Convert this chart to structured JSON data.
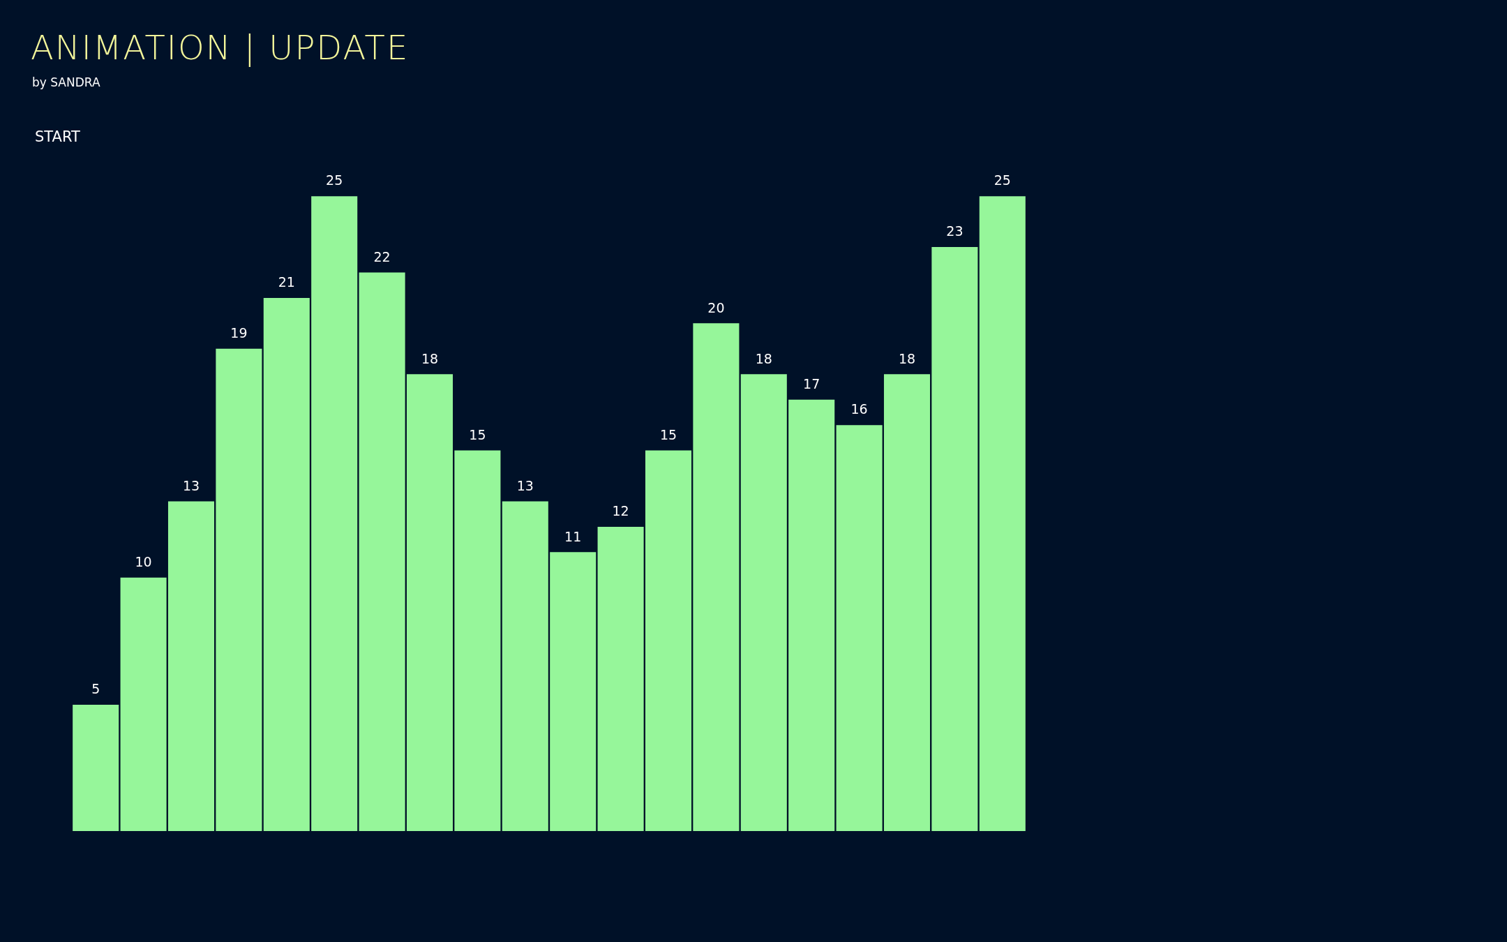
{
  "chart_data": {
    "type": "bar",
    "title": "ANIMATION | UPDATE",
    "subtitle": "by SANDRA",
    "annotations": [
      "START"
    ],
    "categories": [
      null,
      null,
      null,
      null,
      null,
      null,
      null,
      null,
      null,
      null,
      null,
      null,
      null,
      null,
      null,
      null,
      null,
      null,
      null,
      null
    ],
    "values": [
      5,
      10,
      13,
      19,
      21,
      25,
      22,
      18,
      15,
      13,
      11,
      12,
      15,
      20,
      18,
      17,
      16,
      18,
      23,
      25
    ],
    "color": "#96f69a",
    "data_labels": true
  }
}
